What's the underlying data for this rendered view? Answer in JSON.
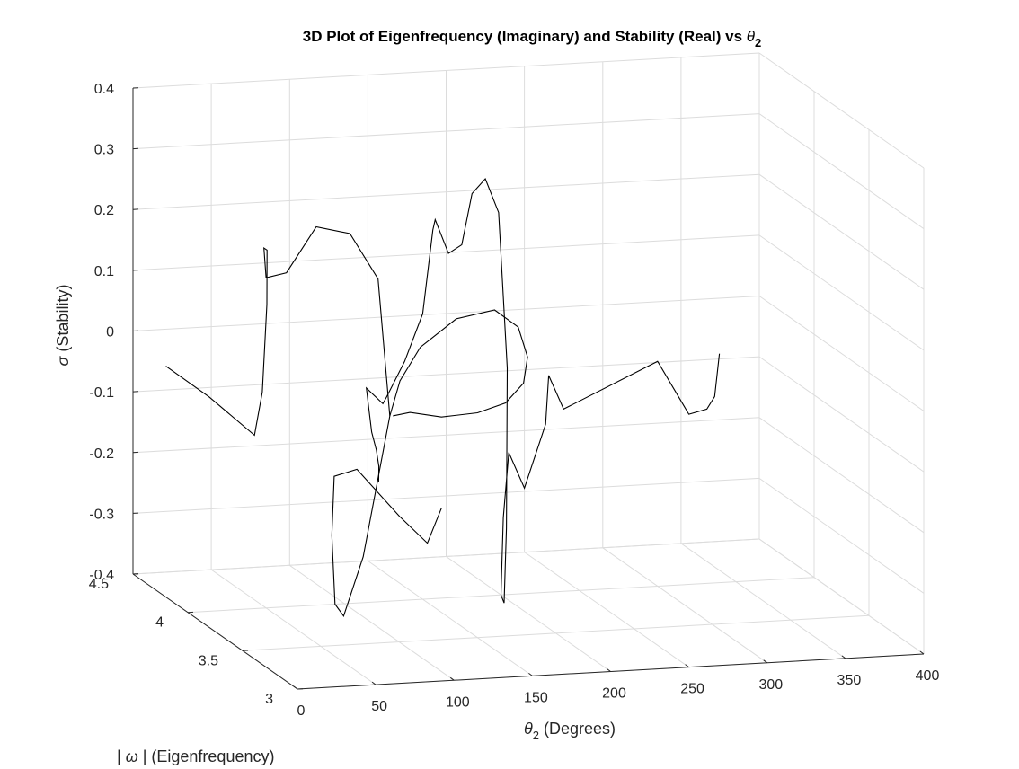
{
  "chart_data": {
    "type": "line",
    "projection": "3d",
    "title": "3D Plot of Eigenfrequency (Imaginary) and Stability (Real) vs θ2",
    "title_parts": {
      "text": "3D Plot of Eigenfrequency (Imaginary) and Stability (Real) vs ",
      "symbol": "θ",
      "subscript": "2"
    },
    "xlabel": "θ2 (Degrees)",
    "xlabel_parts": {
      "symbol": "θ",
      "subscript": "2",
      "text": " (Degrees)"
    },
    "ylabel": "| ω | (Eigenfrequency)",
    "ylabel_parts": {
      "pre": "| ",
      "symbol": "ω",
      "post": " | (Eigenfrequency)"
    },
    "zlabel": "σ (Stability)",
    "zlabel_parts": {
      "symbol": "σ",
      "text": " (Stability)"
    },
    "xlim": [
      0,
      400
    ],
    "ylim": [
      3,
      4.5
    ],
    "zlim": [
      -0.4,
      0.4
    ],
    "xticks": [
      "0",
      "50",
      "100",
      "150",
      "200",
      "250",
      "300",
      "350",
      "400"
    ],
    "yticks": [
      "3",
      "3.5",
      "4",
      "4.5"
    ],
    "zticks": [
      "-0.4",
      "-0.3",
      "-0.2",
      "-0.1",
      "0",
      "0.1",
      "0.2",
      "0.3",
      "0.4"
    ],
    "grid": true,
    "line_color": "#000000",
    "series": [
      {
        "points": [
          [
            0,
            4.2,
            -0.02
          ],
          [
            15,
            4.02,
            -0.05
          ],
          [
            30,
            3.82,
            -0.09
          ],
          [
            35,
            3.82,
            -0.02
          ],
          [
            40,
            3.85,
            0.12
          ],
          [
            45,
            3.92,
            0.2
          ],
          [
            50,
            4.02,
            0.19
          ],
          [
            57,
            4.1,
            0.13
          ],
          [
            63,
            4.0,
            0.15
          ],
          [
            68,
            3.8,
            0.25
          ],
          [
            72,
            3.55,
            0.27
          ],
          [
            76,
            3.35,
            0.22
          ],
          [
            80,
            3.3,
            0.0
          ],
          [
            84,
            3.6,
            -0.27
          ],
          [
            89,
            3.85,
            -0.4
          ],
          [
            94,
            4.0,
            -0.4
          ],
          [
            99,
            4.1,
            -0.3
          ],
          [
            104,
            4.15,
            -0.21
          ],
          [
            108,
            4.0,
            -0.18
          ],
          [
            114,
            3.7,
            -0.22
          ],
          [
            118,
            3.5,
            -0.24
          ],
          [
            120,
            3.4,
            -0.17
          ]
        ]
      },
      {
        "points": [
          [
            80,
            3.3,
            0.0
          ],
          [
            90,
            3.35,
            0.05
          ],
          [
            110,
            3.45,
            0.09
          ],
          [
            140,
            3.55,
            0.12
          ],
          [
            170,
            3.63,
            0.12
          ],
          [
            190,
            3.7,
            0.08
          ],
          [
            196,
            3.7,
            0.03
          ],
          [
            192,
            3.68,
            -0.01
          ],
          [
            175,
            3.6,
            -0.03
          ],
          [
            150,
            3.5,
            -0.03
          ],
          [
            120,
            3.4,
            -0.02
          ],
          [
            95,
            3.33,
            0.0
          ],
          [
            82,
            3.3,
            0.0
          ]
        ]
      },
      {
        "points": [
          [
            110,
            3.83,
            -0.18
          ],
          [
            108,
            3.8,
            -0.15
          ],
          [
            105,
            3.78,
            -0.12
          ],
          [
            102,
            3.78,
            -0.09
          ],
          [
            100,
            3.8,
            -0.02
          ],
          [
            112,
            3.82,
            -0.05
          ],
          [
            120,
            3.9,
            -0.05
          ],
          [
            135,
            3.95,
            0.0
          ],
          [
            150,
            4.0,
            0.07
          ],
          [
            160,
            4.05,
            0.2
          ],
          [
            165,
            4.1,
            0.21
          ],
          [
            170,
            4.05,
            0.16
          ],
          [
            175,
            4.0,
            0.18
          ],
          [
            178,
            3.95,
            0.27
          ],
          [
            183,
            3.9,
            0.3
          ],
          [
            188,
            3.85,
            0.25
          ],
          [
            190,
            3.8,
            0.0
          ],
          [
            193,
            3.85,
            -0.27
          ],
          [
            195,
            3.9,
            -0.4
          ],
          [
            200,
            4.0,
            -0.4
          ],
          [
            205,
            4.05,
            -0.28
          ],
          [
            212,
            4.1,
            -0.18
          ],
          [
            222,
            4.1,
            -0.24
          ],
          [
            232,
            4.05,
            -0.13
          ],
          [
            234,
            4.05,
            -0.05
          ],
          [
            240,
            4.0,
            -0.1
          ],
          [
            300,
            4.0,
            -0.03
          ],
          [
            320,
            4.0,
            -0.12
          ],
          [
            335,
            4.05,
            -0.12
          ],
          [
            340,
            4.05,
            -0.1
          ],
          [
            343,
            4.05,
            -0.03
          ]
        ]
      }
    ]
  }
}
